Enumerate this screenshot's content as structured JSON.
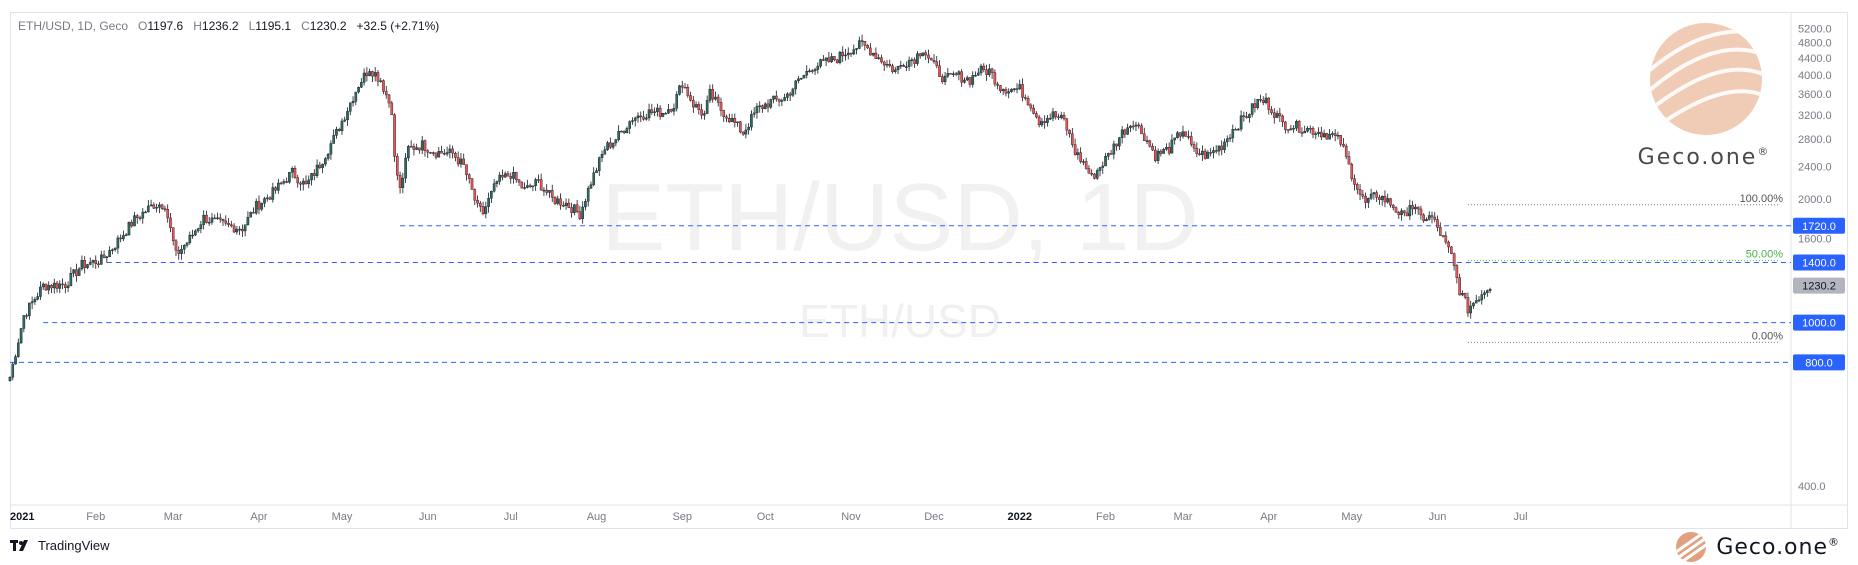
{
  "header": {
    "symbol": "ETH/USD, 1D, Geco",
    "open_label": "O",
    "open": "1197.6",
    "high_label": "H",
    "high": "1236.2",
    "low_label": "L",
    "low": "1195.1",
    "close_label": "C",
    "close": "1230.2",
    "change": "+32.5 (+2.71%)"
  },
  "watermark": {
    "title": "ETH/USD, 1D",
    "subtitle": "ETH/USD"
  },
  "brand": {
    "name": "Geco.one",
    "reg": "®",
    "color": "#e3a07f"
  },
  "footer": {
    "platform": "TradingView"
  },
  "colors": {
    "up": "#26a69a",
    "down": "#ef5350",
    "candle_body_up": "#2e6b5f",
    "level_line": "#2962ff",
    "price_badge": "#2962ff",
    "last_price_badge": "#b2b5be",
    "fib_50": "#4caf50",
    "fib_other": "#787b86"
  },
  "chart_data": {
    "type": "candlestick",
    "title": "ETH/USD, 1D",
    "y_scale": "log",
    "ylim": [
      370,
      5700
    ],
    "y_ticks": [
      "5200.0",
      "4800.0",
      "4400.0",
      "4000.0",
      "3600.0",
      "3200.0",
      "2800.0",
      "2400.0",
      "2000.0",
      "1600.0",
      "400.0"
    ],
    "x_ticks": [
      "2021",
      "Feb",
      "Mar",
      "Apr",
      "May",
      "Jun",
      "Jul",
      "Aug",
      "Sep",
      "Oct",
      "Nov",
      "Dec",
      "2022",
      "Feb",
      "Mar",
      "Apr",
      "May",
      "Jun",
      "Jul"
    ],
    "x_tick_index": [
      0,
      31,
      59,
      90,
      120,
      151,
      181,
      212,
      243,
      273,
      304,
      334,
      365,
      396,
      424,
      455,
      485,
      516,
      546
    ],
    "horizontal_levels": [
      {
        "value": 1720.0,
        "label": "1720.0",
        "start_index": 141
      },
      {
        "value": 1400.0,
        "label": "1400.0",
        "start_index": 35
      },
      {
        "value": 1000.0,
        "label": "1000.0",
        "start_index": 12
      },
      {
        "value": 800.0,
        "label": "800.0",
        "start_index": 0
      }
    ],
    "last_price": {
      "value": 1230.2,
      "label": "1230.2"
    },
    "fibonacci": [
      {
        "ratio": "100.00%",
        "value": 1935
      },
      {
        "ratio": "50.00%",
        "value": 1415
      },
      {
        "ratio": "0.00%",
        "value": 895
      }
    ],
    "fib_start_index": 527,
    "daily_close_keypoints": [
      [
        0,
        737
      ],
      [
        5,
        1040
      ],
      [
        12,
        1230
      ],
      [
        20,
        1240
      ],
      [
        26,
        1380
      ],
      [
        33,
        1420
      ],
      [
        37,
        1520
      ],
      [
        45,
        1780
      ],
      [
        52,
        1940
      ],
      [
        56,
        1940
      ],
      [
        60,
        1460
      ],
      [
        65,
        1600
      ],
      [
        70,
        1800
      ],
      [
        78,
        1720
      ],
      [
        84,
        1700
      ],
      [
        89,
        1920
      ],
      [
        95,
        2070
      ],
      [
        102,
        2320
      ],
      [
        107,
        2150
      ],
      [
        112,
        2430
      ],
      [
        117,
        2800
      ],
      [
        121,
        3200
      ],
      [
        126,
        3800
      ],
      [
        130,
        4170
      ],
      [
        134,
        3900
      ],
      [
        138,
        3300
      ],
      [
        139,
        2500
      ],
      [
        141,
        2100
      ],
      [
        144,
        2650
      ],
      [
        149,
        2710
      ],
      [
        154,
        2600
      ],
      [
        160,
        2580
      ],
      [
        164,
        2400
      ],
      [
        169,
        1900
      ],
      [
        171,
        1850
      ],
      [
        176,
        2200
      ],
      [
        181,
        2300
      ],
      [
        186,
        2100
      ],
      [
        191,
        2200
      ],
      [
        196,
        2000
      ],
      [
        201,
        1950
      ],
      [
        206,
        1840
      ],
      [
        210,
        2200
      ],
      [
        215,
        2650
      ],
      [
        219,
        2800
      ],
      [
        225,
        3150
      ],
      [
        231,
        3250
      ],
      [
        236,
        3250
      ],
      [
        240,
        3400
      ],
      [
        243,
        3850
      ],
      [
        247,
        3400
      ],
      [
        251,
        3200
      ],
      [
        253,
        3600
      ],
      [
        257,
        3300
      ],
      [
        261,
        3100
      ],
      [
        265,
        2900
      ],
      [
        270,
        3300
      ],
      [
        275,
        3450
      ],
      [
        280,
        3520
      ],
      [
        284,
        3800
      ],
      [
        290,
        4200
      ],
      [
        295,
        4300
      ],
      [
        299,
        4400
      ],
      [
        303,
        4600
      ],
      [
        308,
        4750
      ],
      [
        311,
        4600
      ],
      [
        316,
        4300
      ],
      [
        320,
        4100
      ],
      [
        323,
        4300
      ],
      [
        327,
        4400
      ],
      [
        330,
        4650
      ],
      [
        334,
        4200
      ],
      [
        338,
        3900
      ],
      [
        342,
        4000
      ],
      [
        347,
        3900
      ],
      [
        350,
        4100
      ],
      [
        354,
        4100
      ],
      [
        358,
        3750
      ],
      [
        361,
        3700
      ],
      [
        365,
        3700
      ],
      [
        369,
        3400
      ],
      [
        372,
        3100
      ],
      [
        377,
        3200
      ],
      [
        381,
        3100
      ],
      [
        385,
        2600
      ],
      [
        388,
        2450
      ],
      [
        391,
        2250
      ],
      [
        397,
        2550
      ],
      [
        402,
        2900
      ],
      [
        406,
        3100
      ],
      [
        410,
        2850
      ],
      [
        414,
        2550
      ],
      [
        419,
        2650
      ],
      [
        424,
        2950
      ],
      [
        428,
        2600
      ],
      [
        433,
        2550
      ],
      [
        438,
        2700
      ],
      [
        442,
        2950
      ],
      [
        447,
        3200
      ],
      [
        451,
        3450
      ],
      [
        454,
        3450
      ],
      [
        457,
        3250
      ],
      [
        460,
        3050
      ],
      [
        465,
        3000
      ],
      [
        470,
        2950
      ],
      [
        474,
        2900
      ],
      [
        478,
        2850
      ],
      [
        481,
        2750
      ],
      [
        484,
        2400
      ],
      [
        488,
        2050
      ],
      [
        490,
        1950
      ],
      [
        494,
        2050
      ],
      [
        499,
        1950
      ],
      [
        502,
        1850
      ],
      [
        504,
        1800
      ],
      [
        506,
        1950
      ],
      [
        510,
        1800
      ],
      [
        514,
        1800
      ],
      [
        517,
        1650
      ],
      [
        521,
        1450
      ],
      [
        524,
        1200
      ],
      [
        527,
        1080
      ],
      [
        530,
        1140
      ],
      [
        533,
        1200
      ],
      [
        535,
        1230
      ]
    ]
  }
}
